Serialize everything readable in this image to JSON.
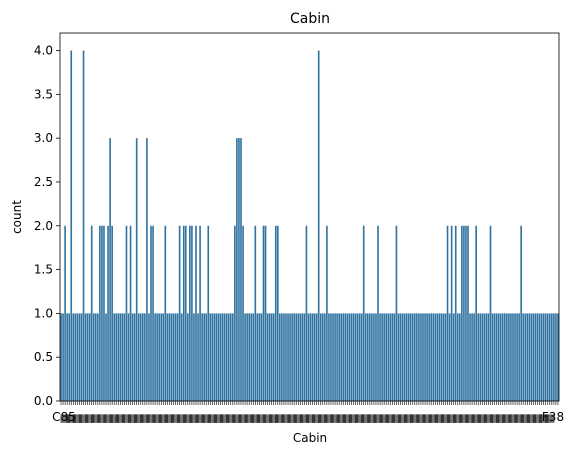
{
  "chart_data": {
    "type": "bar",
    "title": "Cabin",
    "xlabel": "Cabin",
    "ylabel": "count",
    "ylim": [
      0,
      4.2
    ],
    "yticks": [
      "0.0",
      "0.5",
      "1.0",
      "1.5",
      "2.0",
      "2.5",
      "3.0",
      "3.5",
      "4.0"
    ],
    "ytick_values": [
      0,
      0.5,
      1,
      1.5,
      2,
      2.5,
      3,
      3.5,
      4
    ],
    "x_tick_labels_visible": [
      "C85",
      "F38"
    ],
    "bar_color": "#3274a1",
    "grid": false,
    "legend": "none",
    "values": [
      1,
      1,
      2,
      1,
      1,
      4,
      1,
      1,
      1,
      1,
      1,
      4,
      1,
      1,
      1,
      2,
      1,
      1,
      1,
      2,
      2,
      2,
      1,
      2,
      3,
      2,
      1,
      1,
      1,
      1,
      1,
      1,
      2,
      1,
      2,
      1,
      1,
      3,
      1,
      1,
      1,
      1,
      3,
      1,
      2,
      2,
      1,
      1,
      1,
      1,
      1,
      2,
      1,
      1,
      1,
      1,
      1,
      1,
      2,
      1,
      2,
      2,
      1,
      2,
      2,
      1,
      2,
      1,
      2,
      1,
      1,
      1,
      2,
      1,
      1,
      1,
      1,
      1,
      1,
      1,
      1,
      1,
      1,
      1,
      1,
      2,
      3,
      3,
      3,
      2,
      1,
      1,
      1,
      1,
      1,
      2,
      1,
      1,
      1,
      2,
      2,
      1,
      1,
      1,
      1,
      2,
      2,
      1,
      1,
      1,
      1,
      1,
      1,
      1,
      1,
      1,
      1,
      1,
      1,
      1,
      2,
      1,
      1,
      1,
      1,
      1,
      4,
      1,
      1,
      1,
      2,
      1,
      1,
      1,
      1,
      1,
      1,
      1,
      1,
      1,
      1,
      1,
      1,
      1,
      1,
      1,
      1,
      1,
      2,
      1,
      1,
      1,
      1,
      1,
      1,
      2,
      1,
      1,
      1,
      1,
      1,
      1,
      1,
      1,
      2,
      1,
      1,
      1,
      1,
      1,
      1,
      1,
      1,
      1,
      1,
      1,
      1,
      1,
      1,
      1,
      1,
      1,
      1,
      1,
      1,
      1,
      1,
      1,
      1,
      2,
      1,
      2,
      1,
      2,
      1,
      1,
      2,
      2,
      2,
      2,
      1,
      1,
      1,
      2,
      1,
      1,
      1,
      1,
      1,
      1,
      2,
      1,
      1,
      1,
      1,
      1,
      1,
      1,
      1,
      1,
      1,
      1,
      1,
      1,
      1,
      2,
      1,
      1,
      1,
      1,
      1,
      1,
      1,
      1,
      1,
      1,
      1,
      1,
      1,
      1,
      1,
      1,
      1,
      1
    ]
  }
}
